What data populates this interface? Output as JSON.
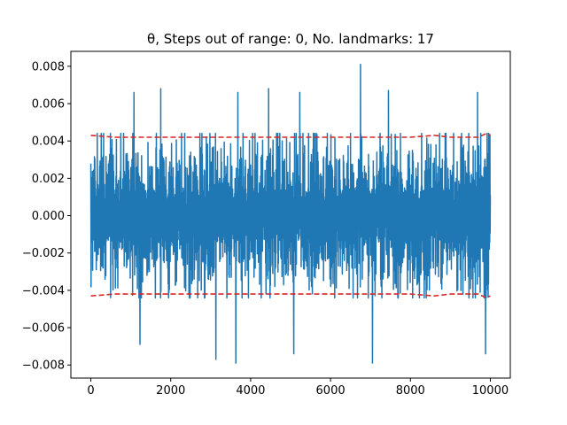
{
  "chart_data": {
    "type": "line",
    "title": "θ, Steps out of range: 0, No. landmarks: 17",
    "xlabel": "",
    "ylabel": "",
    "xlim": [
      -500,
      10500
    ],
    "ylim": [
      -0.0087,
      0.0088
    ],
    "xticks": [
      0,
      2000,
      4000,
      6000,
      8000,
      10000
    ],
    "xtick_labels": [
      "0",
      "2000",
      "4000",
      "6000",
      "8000",
      "10000"
    ],
    "yticks": [
      -0.008,
      -0.006,
      -0.004,
      -0.002,
      0.0,
      0.002,
      0.004,
      0.006,
      0.008
    ],
    "ytick_labels": [
      "−0.008",
      "−0.006",
      "−0.004",
      "−0.002",
      "0.000",
      "0.002",
      "0.004",
      "0.006",
      "0.008"
    ],
    "grid": false,
    "series": [
      {
        "style": "solid",
        "color": "#1f77b4",
        "description": "noisy signal, 10000 steps",
        "x_range": [
          0,
          10000
        ],
        "typical_band": [
          -0.0042,
          0.0042
        ],
        "peaks": [
          {
            "x": 6750,
            "y": 0.0081
          },
          {
            "x": 1750,
            "y": 0.0068
          },
          {
            "x": 4450,
            "y": 0.0068
          },
          {
            "x": 7450,
            "y": 0.0067
          },
          {
            "x": 1080,
            "y": 0.0066
          },
          {
            "x": 3680,
            "y": 0.0066
          },
          {
            "x": 5230,
            "y": 0.0066
          },
          {
            "x": 9680,
            "y": 0.0066
          },
          {
            "x": 7050,
            "y": -0.0079
          },
          {
            "x": 3630,
            "y": -0.0079
          },
          {
            "x": 3130,
            "y": -0.0077
          },
          {
            "x": 9880,
            "y": -0.0074
          },
          {
            "x": 5080,
            "y": -0.0074
          },
          {
            "x": 1230,
            "y": -0.0069
          }
        ]
      },
      {
        "style": "dashed",
        "color": "#d62728",
        "description": "upper bound",
        "x": [
          0,
          300,
          600,
          1000,
          2000,
          3000,
          4000,
          5000,
          6000,
          7000,
          8000,
          8600,
          9000,
          9700,
          9900,
          10000
        ],
        "values": [
          0.0043,
          0.00425,
          0.0042,
          0.0042,
          0.0042,
          0.0042,
          0.0042,
          0.0042,
          0.0042,
          0.0042,
          0.0042,
          0.0043,
          0.0042,
          0.0042,
          0.0044,
          0.0043
        ]
      },
      {
        "style": "dashed",
        "color": "#d62728",
        "description": "lower bound",
        "x": [
          0,
          300,
          600,
          1000,
          2000,
          3000,
          4000,
          5000,
          6000,
          7000,
          8000,
          8600,
          9000,
          9700,
          9900,
          10000
        ],
        "values": [
          -0.0043,
          -0.00425,
          -0.0042,
          -0.0042,
          -0.0042,
          -0.0042,
          -0.0042,
          -0.0042,
          -0.0042,
          -0.0042,
          -0.0042,
          -0.0043,
          -0.0042,
          -0.0042,
          -0.0044,
          -0.0043
        ]
      }
    ]
  }
}
